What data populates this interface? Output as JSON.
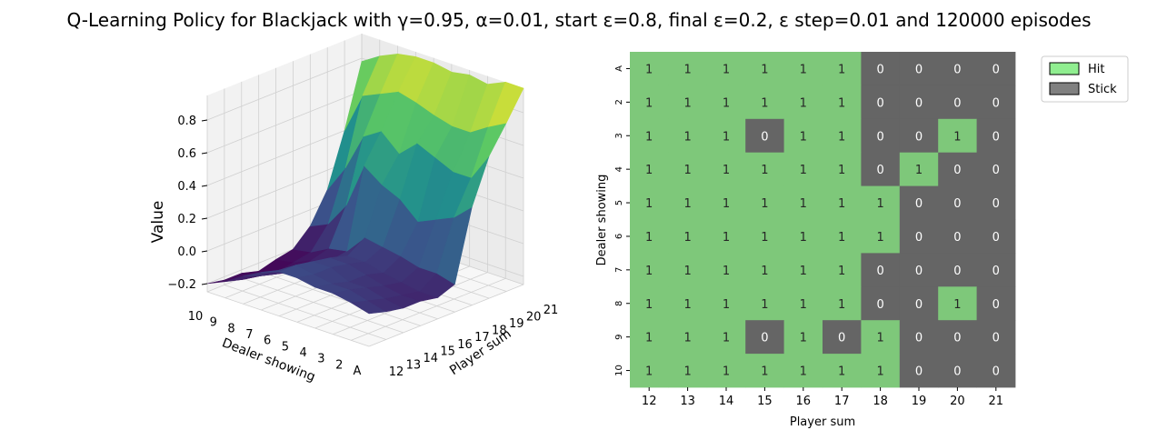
{
  "title": "Q-Learning Policy for Blackjack with γ=0.95, α=0.01, start ε=0.8, final ε=0.2, ε step=0.01 and 120000 episodes",
  "colors": {
    "hit": "#7ec87a",
    "stick": "#656565",
    "legend_hit": "#90ee90",
    "legend_stick": "#808080",
    "viridis": [
      "#440154",
      "#3b528b",
      "#21908d",
      "#5dc963",
      "#fde725"
    ]
  },
  "chart_data": [
    {
      "type": "surface",
      "xlabel": "Player sum",
      "ylabel": "Dealer showing",
      "zlabel": "Value",
      "x_ticks": [
        "12",
        "13",
        "14",
        "15",
        "16",
        "17",
        "18",
        "19",
        "20",
        "21"
      ],
      "y_ticks": [
        "A",
        "2",
        "3",
        "4",
        "5",
        "6",
        "7",
        "8",
        "9",
        "10"
      ],
      "z_ticks": [
        "−0.2",
        "0.0",
        "0.2",
        "0.4",
        "0.6",
        "0.8"
      ],
      "zlim": [
        -0.25,
        0.95
      ],
      "grid": true,
      "values": [
        [
          -0.05,
          -0.08,
          -0.1,
          -0.1,
          -0.12,
          -0.08,
          0.35,
          0.62,
          0.78,
          0.95
        ],
        [
          -0.02,
          -0.05,
          -0.08,
          -0.1,
          -0.12,
          -0.05,
          0.25,
          0.45,
          0.72,
          0.95
        ],
        [
          0.0,
          -0.02,
          -0.05,
          -0.08,
          -0.1,
          -0.05,
          0.2,
          0.45,
          0.65,
          0.9
        ],
        [
          0.0,
          -0.02,
          -0.05,
          -0.05,
          -0.08,
          -0.02,
          0.15,
          0.5,
          0.65,
          0.92
        ],
        [
          0.02,
          0.0,
          0.0,
          -0.02,
          -0.05,
          0.0,
          0.25,
          0.55,
          0.68,
          0.9
        ],
        [
          0.02,
          0.02,
          0.0,
          -0.02,
          -0.05,
          0.02,
          0.3,
          0.45,
          0.72,
          0.92
        ],
        [
          -0.02,
          -0.05,
          -0.08,
          -0.1,
          -0.12,
          -0.1,
          0.38,
          0.55,
          0.75,
          0.92
        ],
        [
          -0.08,
          -0.12,
          -0.15,
          -0.18,
          -0.15,
          -0.12,
          0.1,
          0.48,
          0.7,
          0.9
        ],
        [
          -0.15,
          -0.18,
          -0.2,
          -0.22,
          -0.2,
          -0.18,
          -0.05,
          0.25,
          0.65,
          0.85
        ],
        [
          -0.2,
          -0.22,
          -0.22,
          -0.25,
          -0.22,
          -0.2,
          -0.1,
          0.08,
          0.4,
          0.78
        ]
      ]
    },
    {
      "type": "heatmap",
      "xlabel": "Player sum",
      "ylabel": "Dealer showing",
      "x_categories": [
        "12",
        "13",
        "14",
        "15",
        "16",
        "17",
        "18",
        "19",
        "20",
        "21"
      ],
      "y_categories": [
        "A",
        "2",
        "3",
        "4",
        "5",
        "6",
        "7",
        "8",
        "9",
        "10"
      ],
      "values": [
        [
          1,
          1,
          1,
          1,
          1,
          1,
          0,
          0,
          0,
          0
        ],
        [
          1,
          1,
          1,
          1,
          1,
          1,
          0,
          0,
          0,
          0
        ],
        [
          1,
          1,
          1,
          0,
          1,
          1,
          0,
          0,
          1,
          0
        ],
        [
          1,
          1,
          1,
          1,
          1,
          1,
          0,
          1,
          0,
          0
        ],
        [
          1,
          1,
          1,
          1,
          1,
          1,
          1,
          0,
          0,
          0
        ],
        [
          1,
          1,
          1,
          1,
          1,
          1,
          1,
          0,
          0,
          0
        ],
        [
          1,
          1,
          1,
          1,
          1,
          1,
          0,
          0,
          0,
          0
        ],
        [
          1,
          1,
          1,
          1,
          1,
          1,
          0,
          0,
          1,
          0
        ],
        [
          1,
          1,
          1,
          0,
          1,
          0,
          1,
          0,
          0,
          0
        ],
        [
          1,
          1,
          1,
          1,
          1,
          1,
          1,
          0,
          0,
          0
        ]
      ],
      "legend": [
        "Hit",
        "Stick"
      ],
      "legend_position": "top-right"
    }
  ]
}
